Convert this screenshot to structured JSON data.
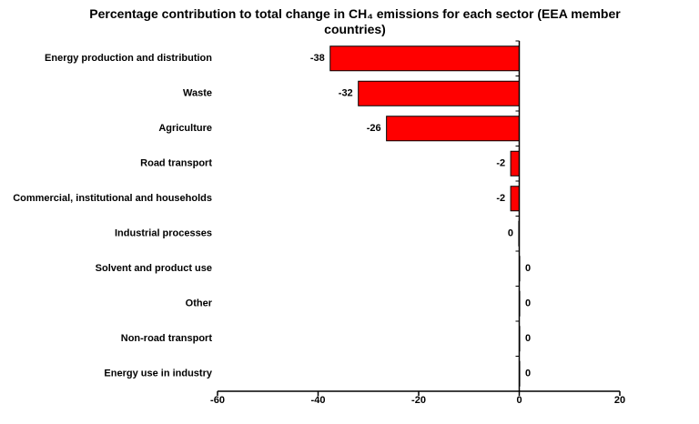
{
  "chart_data": {
    "type": "barh",
    "title": "Percentage contribution to total change in CH₄ emissions for each sector (EEA member countries)",
    "categories": [
      "Energy production and distribution",
      "Waste",
      "Agriculture",
      "Road transport",
      "Commercial, institutional and households",
      "Industrial processes",
      "Solvent and product use",
      "Other",
      "Non-road transport",
      "Energy use in industry"
    ],
    "values": [
      -37.6,
      -32,
      -26.4,
      -1.7,
      -1.7,
      -0.1,
      0.1,
      0.1,
      0.1,
      0.1
    ],
    "value_labels": [
      "-38",
      "-32",
      "-26",
      "-2",
      "-2",
      "0",
      "0",
      "0",
      "0",
      "0"
    ],
    "color": "#ff0000",
    "xlim": [
      -60,
      20
    ],
    "xticks": [
      -60,
      -40,
      -20,
      0,
      20
    ]
  }
}
